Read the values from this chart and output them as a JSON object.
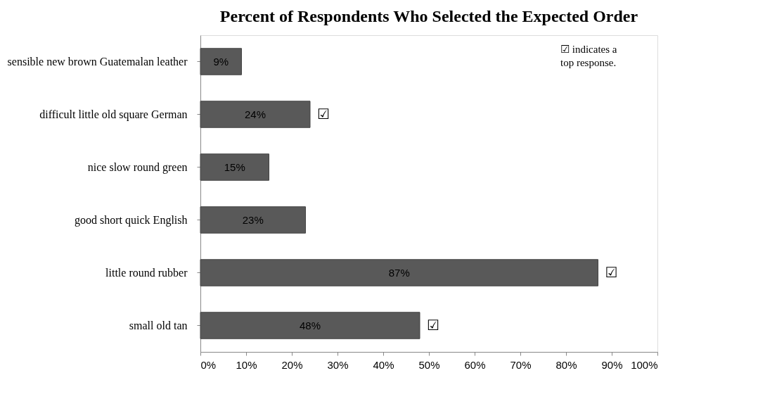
{
  "chart_data": {
    "type": "bar",
    "orientation": "horizontal",
    "title": "Percent of Respondents Who Selected the Expected Order",
    "categories": [
      "sensible new brown Guatemalan leather",
      "difficult little old square German",
      "nice slow round green",
      "good short quick English",
      "little round rubber",
      "small old tan"
    ],
    "values": [
      9,
      24,
      15,
      23,
      87,
      48
    ],
    "value_labels": [
      "9%",
      "24%",
      "15%",
      "23%",
      "87%",
      "48%"
    ],
    "color": "#595959",
    "xlim": [
      0,
      100
    ],
    "xticks": [
      {
        "value": 0,
        "label": "0%"
      },
      {
        "value": 10,
        "label": "10%"
      },
      {
        "value": 20,
        "label": "20%"
      },
      {
        "value": 30,
        "label": "30%"
      },
      {
        "value": 40,
        "label": "40%"
      },
      {
        "value": 50,
        "label": "50%"
      },
      {
        "value": 60,
        "label": "60%"
      },
      {
        "value": 70,
        "label": "70%"
      },
      {
        "value": 80,
        "label": "80%"
      },
      {
        "value": 90,
        "label": "90%"
      },
      {
        "value": 100,
        "label": "100%"
      }
    ],
    "grid": false,
    "annotations": [
      {
        "text": "☑",
        "x": 24,
        "y": "difficult little old square German"
      },
      {
        "text": "☑",
        "x": 87,
        "y": "little round rubber"
      },
      {
        "text": "☑",
        "x": 48,
        "y": "small old tan"
      },
      "☑ indicates a top response."
    ]
  }
}
